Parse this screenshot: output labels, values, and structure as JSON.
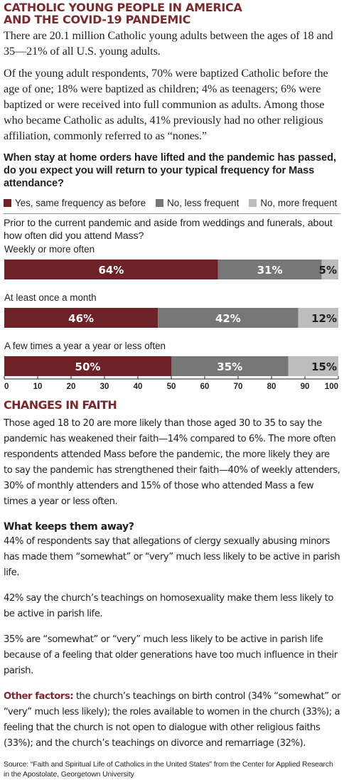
{
  "headline": {
    "line1": "CATHOLIC YOUNG PEOPLE IN AMERICA",
    "line2": "AND THE COVID-19 PANDEMIC"
  },
  "intro": {
    "p1": "There are 20.1 million Catholic young adults between the ages of 18 and 35—21% of all U.S. young adults.",
    "p2": "Of the young adult respondents, 70% were baptized Catholic before the age of one; 18% were baptized as children; 4% as teenagers; 6% were baptized or were received into full communion as adults. Among those who became Catholic as adults, 41% previously had no other religious affiliation, commonly referred to as “nones.”"
  },
  "question": "When stay at home orders have lifted and the pandemic has passed, do you expect you will return to your typical frequency for Mass attendance?",
  "subquestion": "Prior to the current pandemic and aside from weddings and funerals, about how often did you attend Mass?",
  "colors": {
    "accent": "#7a2a2e",
    "dark_red": "#6e2228",
    "mid_gray": "#777777",
    "light_gray": "#bdbdbd"
  },
  "chart_data": {
    "type": "bar",
    "orientation": "horizontal",
    "stacked": true,
    "categories": [
      "Weekly or more often",
      "At least once a month",
      "A few times a year a year or less often"
    ],
    "series": [
      {
        "name": "Yes, same frequency as before",
        "values": [
          64,
          46,
          50
        ],
        "labels": [
          "64%",
          "46%",
          "50%"
        ],
        "color": "#6e2228"
      },
      {
        "name": "No, less frequent",
        "values": [
          31,
          42,
          35
        ],
        "labels": [
          "31%",
          "42%",
          "35%"
        ],
        "color": "#777777"
      },
      {
        "name": "No, more frequent",
        "values": [
          5,
          12,
          15
        ],
        "labels": [
          "5%",
          "12%",
          "15%"
        ],
        "color": "#bdbdbd"
      }
    ],
    "xlim": [
      0,
      100
    ],
    "xticks": [
      0,
      10,
      20,
      30,
      40,
      50,
      60,
      70,
      80,
      90,
      100
    ],
    "legend_position": "top"
  },
  "changes": {
    "title": "CHANGES IN FAITH",
    "p1": "Those aged 18 to 20 are more likely than those aged 30 to 35 to say the pandemic has weakened their faith—14% compared to 6%. The more often respondents attended Mass before the pandemic, the more likely they are to say the pandemic has strengthened their faith—40% of weekly attenders, 30% of monthly attenders and 15% of those who attended Mass a few times a year or less often."
  },
  "keeps_away": {
    "title": "What keeps them away?",
    "p1": "44% of respondents say that allegations of clergy sexually abusing minors has made them “somewhat” or “very” much less likely to be active in parish life.",
    "p2": "42% say the church’s teachings on homosexuality make them less likely to be active in parish life.",
    "p3": "35% are “somewhat” or “very” much less likely to be active in parish life because of a feeling that older generations have too much influence in their parish."
  },
  "other_factors": {
    "lead": "Other factors:",
    "text": " the church’s teachings on birth control (34% “somewhat” or “very” much less likely); the roles available to women in the church (33%); a feeling that the church is not open to dialogue with other religious faiths (33%); and the church’s teachings on divorce and remarriage (32%)."
  },
  "source": "Source: “Faith and Spiritual Life of Catholics in the United States” from the Center for Applied Research in the Apostolate, Georgetown University"
}
